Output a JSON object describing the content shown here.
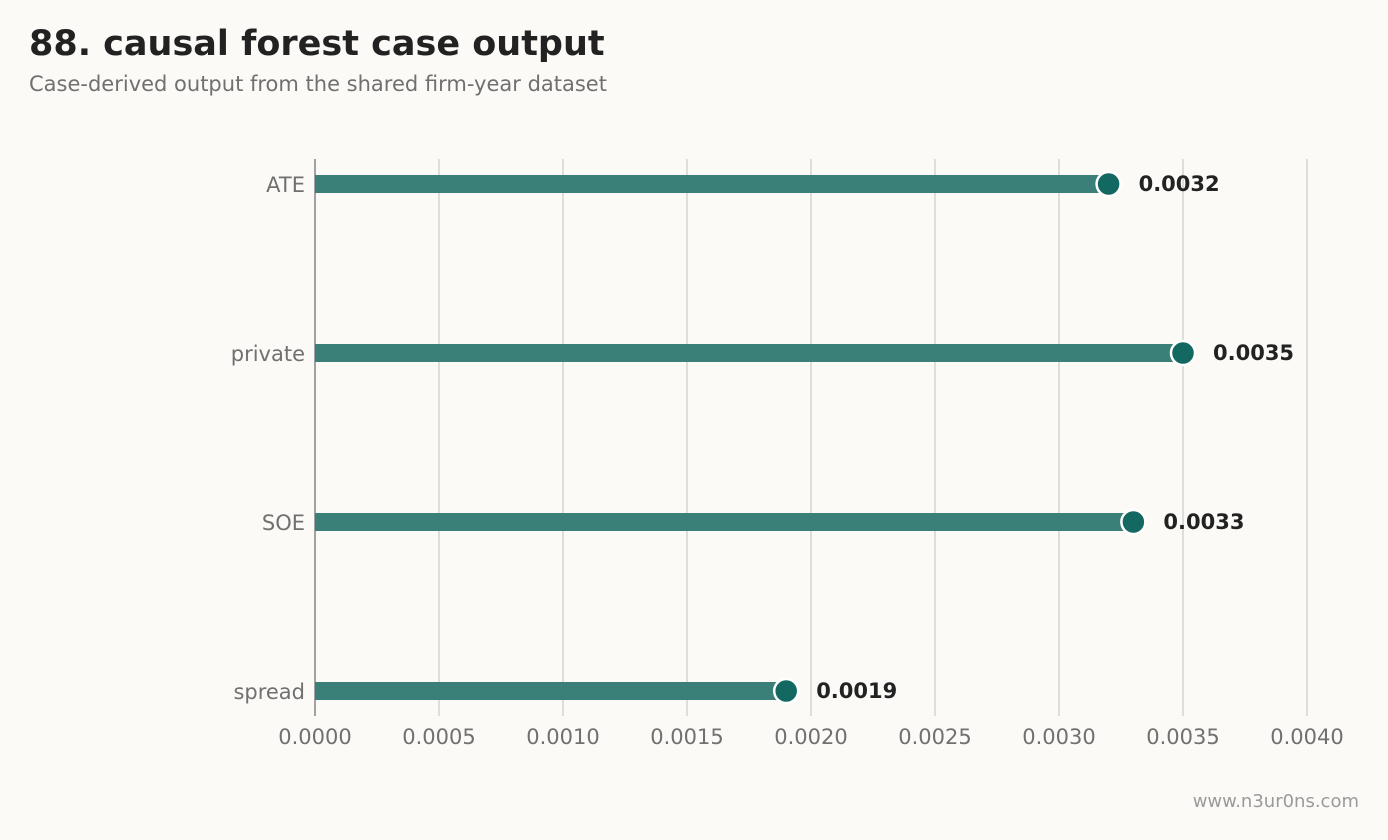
{
  "header": {
    "title": "88. causal forest case output",
    "subtitle": "Case-derived output from the shared firm-year dataset"
  },
  "watermark": "www.n3ur0ns.com",
  "colors": {
    "bar": "#3b8078",
    "dot": "#146862",
    "grid": "#d6d6d2",
    "axis": "#8c8c8c",
    "background": "#fbfaf7"
  },
  "chart_data": {
    "type": "bar",
    "orientation": "horizontal",
    "style": "lollipop",
    "categories": [
      "ATE",
      "private",
      "SOE",
      "spread"
    ],
    "values": [
      0.0032,
      0.0035,
      0.0033,
      0.0019
    ],
    "value_labels": [
      "0.0032",
      "0.0035",
      "0.0033",
      "0.0019"
    ],
    "xlim": [
      0.0,
      0.004
    ],
    "xticks": [
      0.0,
      0.0005,
      0.001,
      0.0015,
      0.002,
      0.0025,
      0.003,
      0.0035,
      0.004
    ],
    "xtick_labels": [
      "0.0000",
      "0.0005",
      "0.0010",
      "0.0015",
      "0.0020",
      "0.0025",
      "0.0030",
      "0.0035",
      "0.0040"
    ],
    "xlabel": "",
    "ylabel": "",
    "grid": "vertical",
    "legend": "none"
  }
}
